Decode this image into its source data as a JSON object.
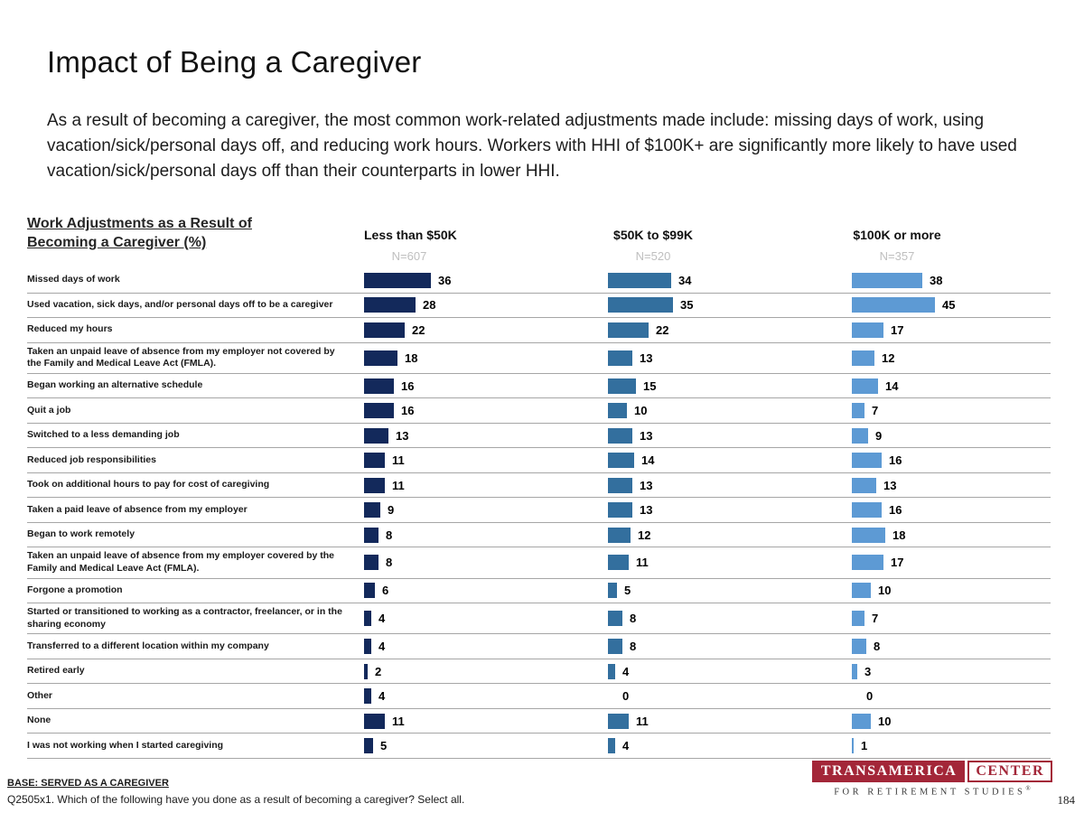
{
  "page": {
    "title": "Impact of Being a Caregiver",
    "intro": "As a result of becoming a caregiver, the most common work-related adjustments made include: missing days of work, using vacation/sick/personal days off, and reducing work hours. Workers with HHI of $100K+ are significantly more likely to have used vacation/sick/personal days off than their counterparts in lower HHI.",
    "page_number": "184"
  },
  "chart_data": {
    "type": "bar",
    "orientation": "horizontal",
    "title": "Work Adjustments as a Result of Becoming a Caregiver (%)",
    "xlim": [
      0,
      50
    ],
    "legend_position": "column-headers",
    "grid": false,
    "categories": [
      "Missed days of work",
      "Used vacation, sick days, and/or personal days off to be a caregiver",
      "Reduced my hours",
      "Taken an unpaid leave of absence from my employer not covered by the Family and Medical Leave Act (FMLA).",
      "Began working an alternative schedule",
      "Quit a job",
      "Switched to a less demanding job",
      "Reduced job responsibilities",
      "Took on additional hours to pay for cost of caregiving",
      "Taken a paid leave of absence from my employer",
      "Began to work remotely",
      "Taken an unpaid leave of absence from my employer covered by the Family and Medical Leave Act (FMLA).",
      "Forgone a promotion",
      "Started or transitioned to working as a contractor, freelancer, or in the sharing economy",
      "Transferred to a different location within my company",
      "Retired early",
      "Other",
      "None",
      "I was not working when I started caregiving"
    ],
    "series": [
      {
        "name": "Less than $50K",
        "n_label": "N=607",
        "color": "#13295b",
        "values": [
          36,
          28,
          22,
          18,
          16,
          16,
          13,
          11,
          11,
          9,
          8,
          8,
          6,
          4,
          4,
          2,
          4,
          11,
          5
        ]
      },
      {
        "name": "$50K to $99K",
        "n_label": "N=520",
        "color": "#336f9e",
        "values": [
          34,
          35,
          22,
          13,
          15,
          10,
          13,
          14,
          13,
          13,
          12,
          11,
          5,
          8,
          8,
          4,
          0,
          11,
          4
        ]
      },
      {
        "name": "$100K or more",
        "n_label": "N=357",
        "color": "#5d9ad4",
        "values": [
          38,
          45,
          17,
          12,
          14,
          7,
          9,
          16,
          13,
          16,
          18,
          17,
          10,
          7,
          8,
          3,
          0,
          10,
          1
        ]
      }
    ]
  },
  "footer": {
    "base": "BASE: SERVED AS A CAREGIVER",
    "question": "Q2505x1. Which of the following have you done as a result of becoming a caregiver? Select all.",
    "logo": {
      "line1_left": "TRANSAMERICA",
      "line1_right": "CENTER",
      "line2": "FOR RETIREMENT STUDIES",
      "reg_mark": "®",
      "maroon": "#a32638"
    }
  }
}
